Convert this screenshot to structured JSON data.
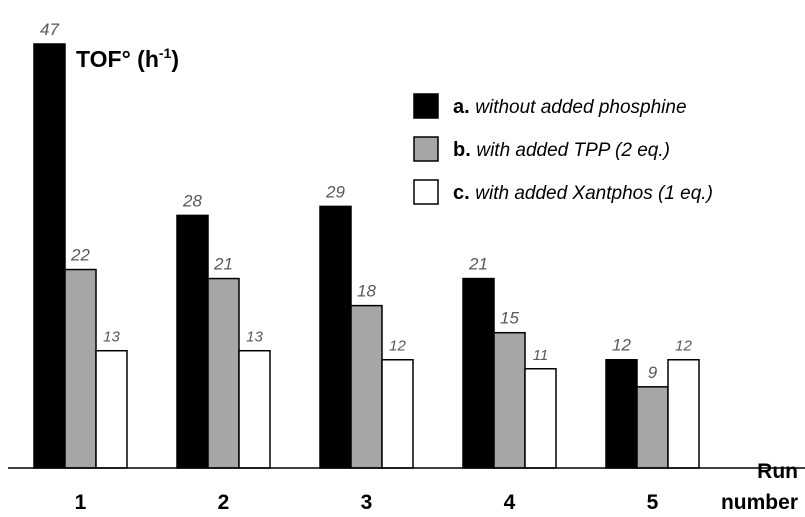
{
  "chart_data": {
    "type": "bar",
    "title": "",
    "ylabel": {
      "main": "TOF° (h",
      "sup": "-1",
      "tail": ")"
    },
    "xlabel": {
      "line1": "Run",
      "line2": "number"
    },
    "categories": [
      "1",
      "2",
      "3",
      "4",
      "5"
    ],
    "ylim": [
      0,
      47
    ],
    "grid": false,
    "legend_position": "top-right",
    "series": [
      {
        "key": "a",
        "prefix": "a.",
        "name": "without added phosphine",
        "color": "#000000",
        "values": [
          47,
          28,
          29,
          21,
          12
        ]
      },
      {
        "key": "b",
        "prefix": "b.",
        "name": "with added TPP (2 eq.)",
        "color": "#a6a6a6",
        "values": [
          22,
          21,
          18,
          15,
          9
        ]
      },
      {
        "key": "c",
        "prefix": "c.",
        "name": "with added Xantphos (1 eq.)",
        "color": "#ffffff",
        "values": [
          13,
          13,
          12,
          11,
          12
        ]
      }
    ]
  }
}
